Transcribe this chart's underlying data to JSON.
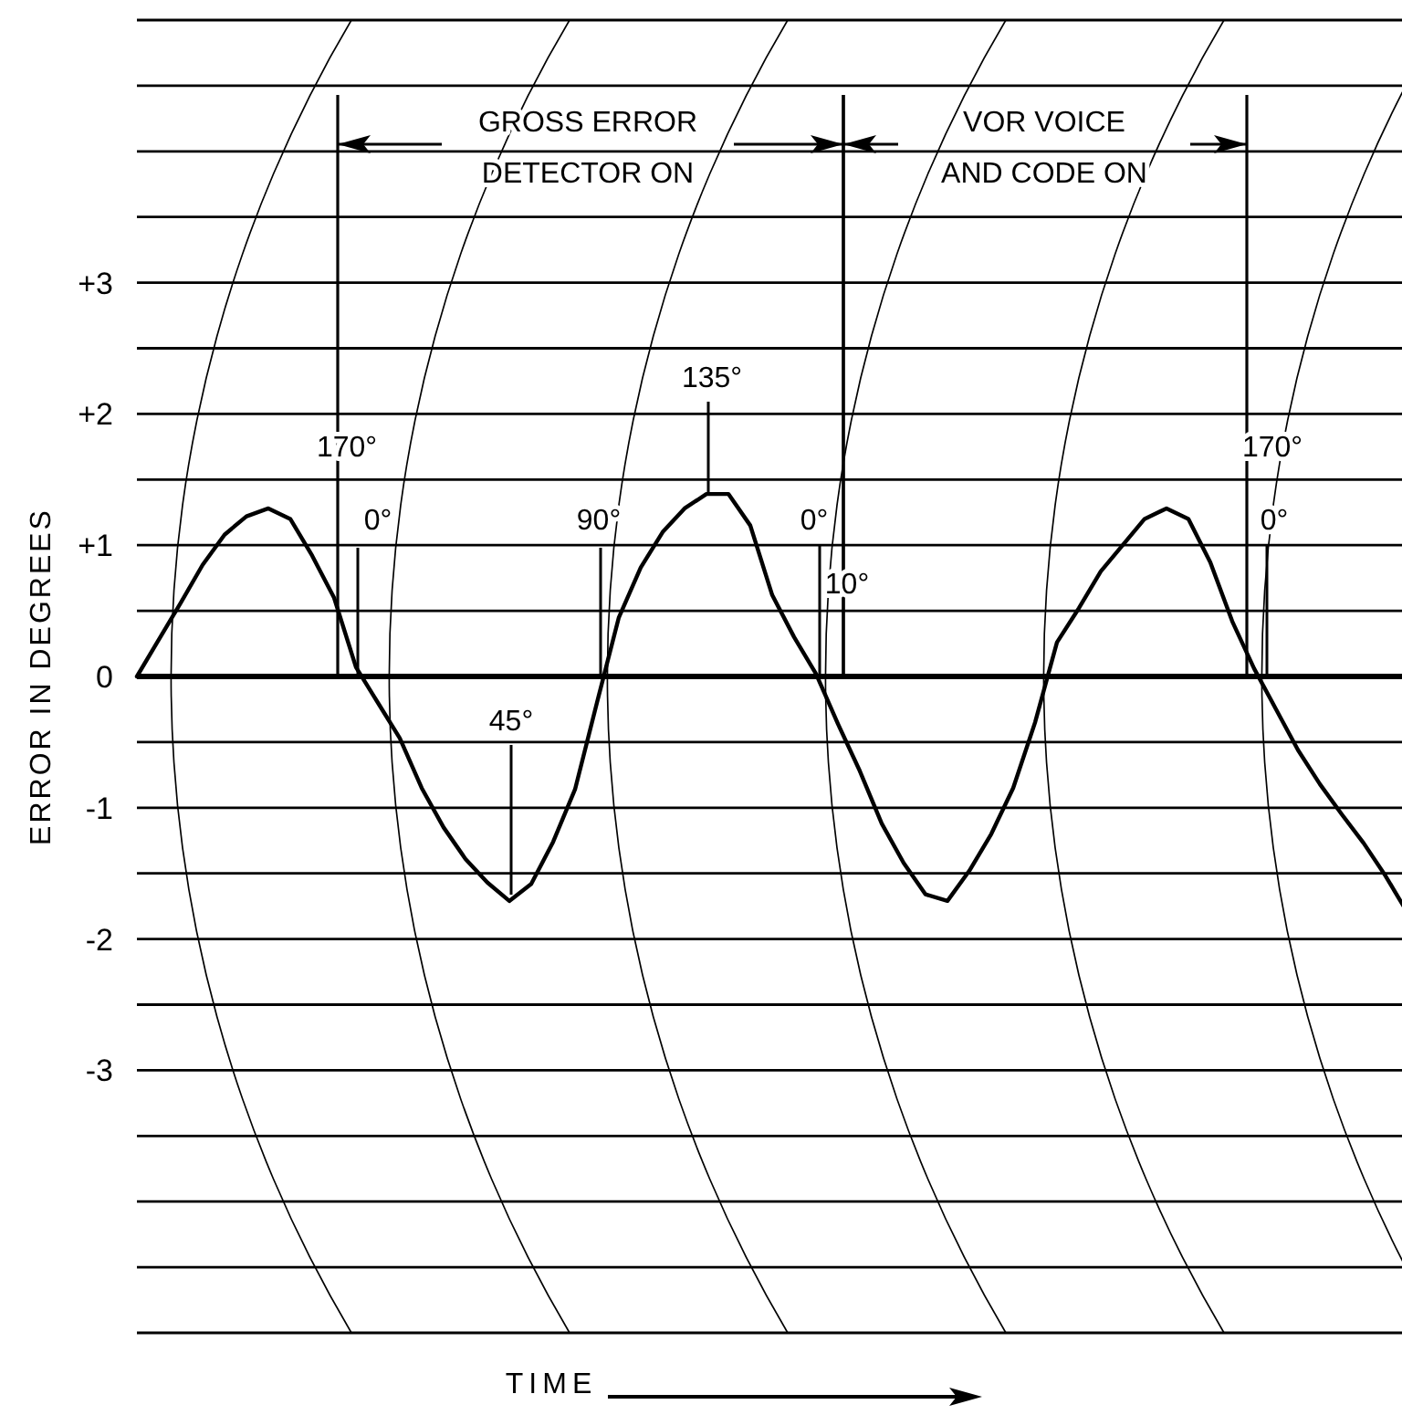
{
  "chart_data": {
    "type": "line",
    "xlabel": "TIME",
    "ylabel": "ERROR IN DEGREES",
    "categories": [
      null,
      null,
      null,
      null,
      null,
      null,
      null,
      null,
      null,
      null,
      null,
      null,
      null,
      null,
      null,
      null,
      null,
      null,
      null,
      null,
      null,
      null,
      null,
      null,
      null,
      null,
      null,
      null,
      null,
      null,
      null,
      null,
      null,
      null,
      null,
      null,
      null,
      null,
      null,
      null,
      null,
      null,
      null,
      null,
      null,
      null,
      null,
      null,
      null,
      null,
      null,
      null,
      null,
      null,
      null,
      null,
      null,
      null,
      null
    ],
    "series": [
      {
        "color": "#000000",
        "values": [
          0,
          0.28,
          0.56,
          0.85,
          1.08,
          1.22,
          1.28,
          1.2,
          0.92,
          0.6,
          0.07,
          -0.2,
          -0.47,
          -0.85,
          -1.15,
          -1.39,
          -1.57,
          -1.71,
          -1.58,
          -1.26,
          -0.86,
          -0.2,
          0.45,
          0.83,
          1.1,
          1.28,
          1.39,
          1.39,
          1.15,
          0.62,
          0.3,
          0.02,
          -0.36,
          -0.72,
          -1.12,
          -1.42,
          -1.66,
          -1.71,
          -1.48,
          -1.2,
          -0.85,
          -0.35,
          0.26,
          0.52,
          0.8,
          1.0,
          1.2,
          1.28,
          1.2,
          0.87,
          0.42,
          0.06,
          -0.25,
          -0.56,
          -0.82,
          -1.05,
          -1.27,
          -1.52,
          -1.8
        ]
      }
    ],
    "ylim": [
      -5,
      5
    ],
    "yticks": [
      {
        "value": -5,
        "label": null
      },
      {
        "value": -4.5,
        "label": null
      },
      {
        "value": -4,
        "label": null
      },
      {
        "value": -3.5,
        "label": null
      },
      {
        "value": -3,
        "label": "-3"
      },
      {
        "value": -2.5,
        "label": null
      },
      {
        "value": -2,
        "label": "-2"
      },
      {
        "value": -1.5,
        "label": null
      },
      {
        "value": -1,
        "label": "-1"
      },
      {
        "value": -0.5,
        "label": null
      },
      {
        "value": 0,
        "label": "0"
      },
      {
        "value": 0.5,
        "label": null
      },
      {
        "value": 1,
        "label": "+1"
      },
      {
        "value": 1.5,
        "label": null
      },
      {
        "value": 2,
        "label": "+2"
      },
      {
        "value": 2.5,
        "label": null
      },
      {
        "value": 3,
        "label": "+3"
      },
      {
        "value": 3.5,
        "label": null
      },
      {
        "value": 4,
        "label": null
      },
      {
        "value": 4.5,
        "label": null
      },
      {
        "value": 5,
        "label": null
      }
    ],
    "grid": "y",
    "tick_labels": "y",
    "marker": "none",
    "line_style": "solid",
    "annotations": [
      "GROSS ERROR\nDETECTOR ON",
      "VOR VOICE\nAND CODE ON",
      "170°",
      "0°",
      "90°",
      "45°",
      "135°",
      "0°",
      "10°",
      "170°",
      "0°"
    ]
  }
}
